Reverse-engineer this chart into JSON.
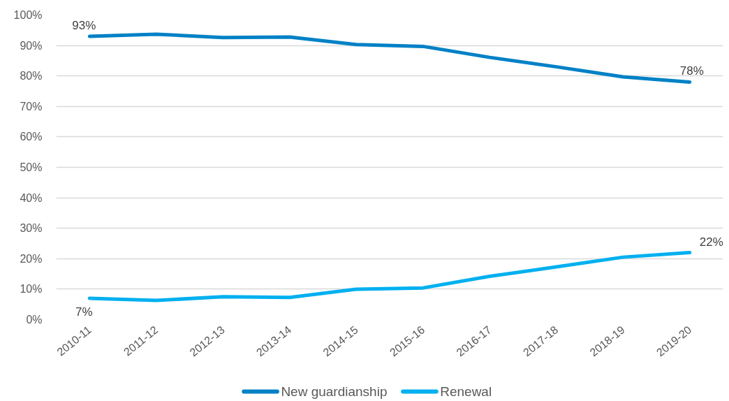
{
  "chart_data": {
    "type": "line",
    "categories": [
      "2010-11",
      "2011-12",
      "2012-13",
      "2013-14",
      "2014-15",
      "2015-16",
      "2016-17",
      "2017-18",
      "2018-19",
      "2019-20"
    ],
    "series": [
      {
        "name": "New guardianship",
        "color": "#0081c6",
        "values": [
          93,
          93.7,
          92.6,
          92.8,
          90.3,
          89.7,
          86.1,
          83.0,
          79.7,
          78
        ],
        "value_labels": [
          "93%",
          null,
          null,
          null,
          null,
          null,
          null,
          null,
          null,
          "78%"
        ]
      },
      {
        "name": "Renewal",
        "color": "#00b0f0",
        "values": [
          7,
          6.3,
          7.5,
          7.3,
          10.0,
          10.4,
          14.2,
          17.3,
          20.5,
          22
        ],
        "value_labels": [
          "7%",
          null,
          null,
          null,
          null,
          null,
          null,
          null,
          null,
          "22%"
        ]
      }
    ],
    "ylim": [
      0,
      100
    ],
    "yticks": [
      {
        "value": 0,
        "label": "0%"
      },
      {
        "value": 10,
        "label": "10%"
      },
      {
        "value": 20,
        "label": "20%"
      },
      {
        "value": 30,
        "label": "30%"
      },
      {
        "value": 40,
        "label": "40%"
      },
      {
        "value": 50,
        "label": "50%"
      },
      {
        "value": 60,
        "label": "60%"
      },
      {
        "value": 70,
        "label": "70%"
      },
      {
        "value": 80,
        "label": "80%"
      },
      {
        "value": 90,
        "label": "90%"
      },
      {
        "value": 100,
        "label": "100%"
      }
    ],
    "grid": "y",
    "legend": "bottom"
  }
}
